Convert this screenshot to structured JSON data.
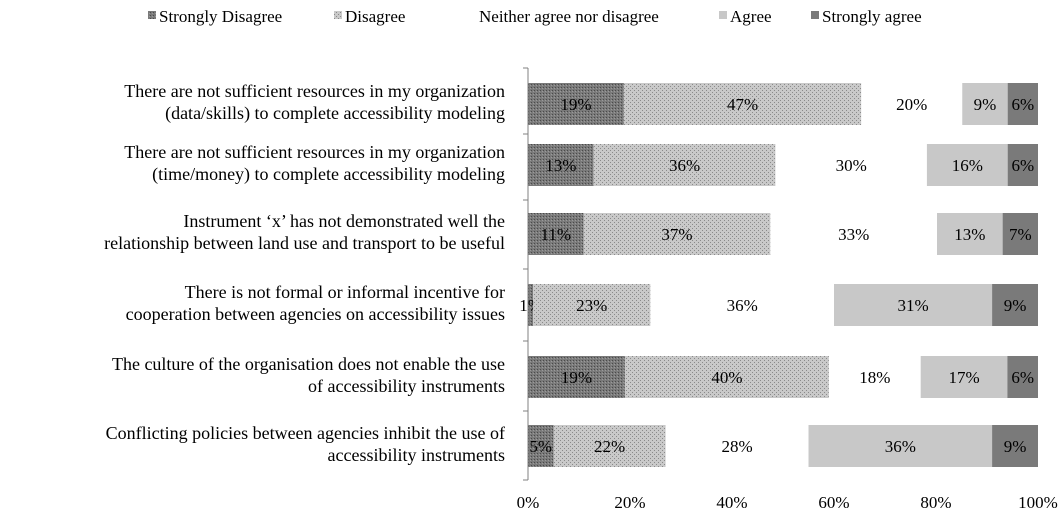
{
  "chart_data": {
    "type": "bar",
    "orientation": "horizontal",
    "stacked": true,
    "normalized": true,
    "categories": [
      [
        "There are not sufficient resources in my organization",
        "(data/skills) to complete accessibility modeling"
      ],
      [
        "There are not sufficient resources in my organization",
        "(time/money) to complete accessibility modeling"
      ],
      [
        "Instrument ‘x’ has not demonstrated well the",
        "relationship between land use and transport to be useful"
      ],
      [
        "There is not formal or informal incentive for",
        "cooperation between agencies on accessibility issues"
      ],
      [
        "The culture of the organisation does not enable the use",
        "of accessibility instruments"
      ],
      [
        "Conflicting policies between agencies inhibit the use of",
        "accessibility instruments"
      ]
    ],
    "series": [
      {
        "name": "Strongly Disagree",
        "color": "#6b6b6b",
        "pattern": "dense-dots",
        "values": [
          19,
          13,
          11,
          1,
          19,
          5
        ],
        "labels": [
          "19%",
          "13%",
          "11%",
          "1%",
          "19%",
          "5%"
        ]
      },
      {
        "name": "Disagree",
        "color": "#bdbdbd",
        "pattern": "sparse-dots",
        "values": [
          47,
          36,
          37,
          23,
          40,
          22
        ],
        "labels": [
          "47%",
          "36%",
          "37%",
          "23%",
          "40%",
          "22%"
        ]
      },
      {
        "name": "Neither agree nor disagree",
        "color": "#ffffff",
        "pattern": "none",
        "values": [
          20,
          30,
          33,
          36,
          18,
          28
        ],
        "labels": [
          "20%",
          "30%",
          "33%",
          "36%",
          "18%",
          "28%"
        ]
      },
      {
        "name": "Agree",
        "color": "#c8c8c8",
        "pattern": "none",
        "values": [
          9,
          16,
          13,
          31,
          17,
          36
        ],
        "labels": [
          "9%",
          "16%",
          "13%",
          "31%",
          "17%",
          "36%"
        ]
      },
      {
        "name": "Strongly agree",
        "color": "#7a7a7a",
        "pattern": "none",
        "values": [
          6,
          6,
          7,
          9,
          6,
          9
        ],
        "labels": [
          "6%",
          "6%",
          "7%",
          "9%",
          "6%",
          "9%"
        ]
      }
    ],
    "xlim": [
      0,
      100
    ],
    "xticks": [
      "0%",
      "20%",
      "40%",
      "60%",
      "80%",
      "100%"
    ],
    "legend_position": "top",
    "grid": false
  }
}
